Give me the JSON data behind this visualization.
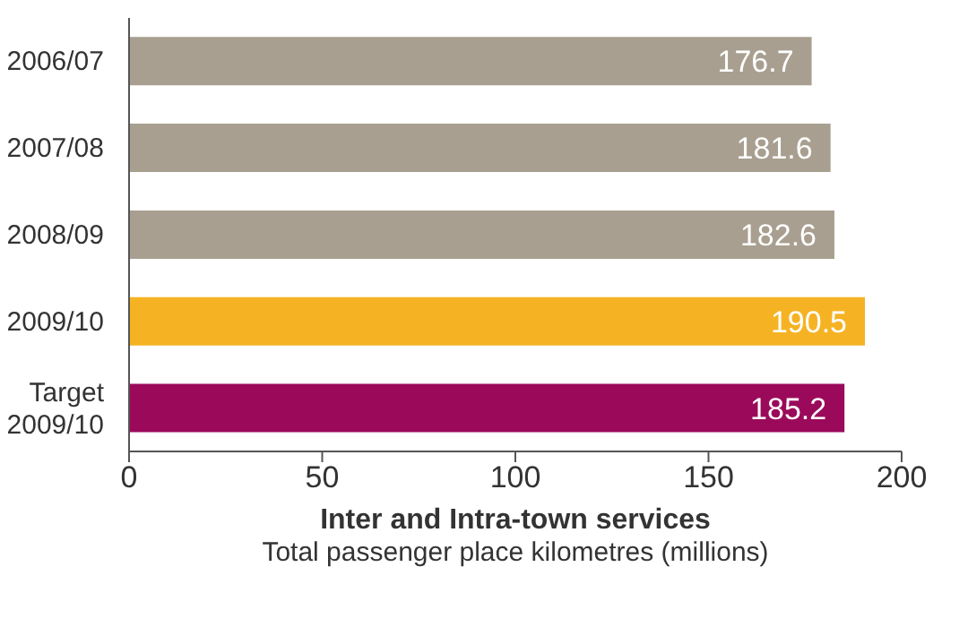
{
  "chart_data": {
    "type": "bar",
    "orientation": "horizontal",
    "categories": [
      "2006/07",
      "2007/08",
      "2008/09",
      "2009/10",
      "Target 2009/10"
    ],
    "values": [
      176.7,
      181.6,
      182.6,
      190.5,
      185.2
    ],
    "colors": [
      "#a89f90",
      "#a89f90",
      "#a89f90",
      "#f5b324",
      "#9b0a5a"
    ],
    "xlim": [
      0,
      200
    ],
    "xticks": [
      0,
      50,
      100,
      150,
      200
    ],
    "xlabel": "Inter and Intra-town services",
    "annotations": [
      "Total passenger place kilometres (millions)"
    ],
    "data_labels": true
  }
}
